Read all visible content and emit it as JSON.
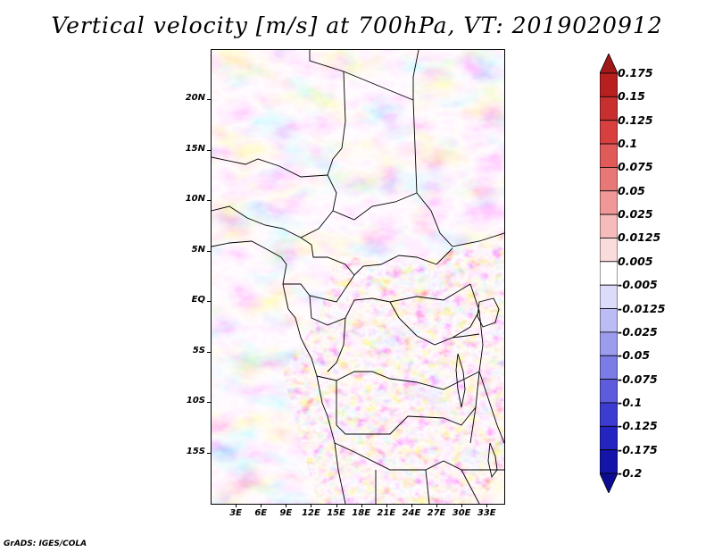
{
  "title": "Vertical velocity [m/s] at 700hPa, VT: 2019020912",
  "footer": "GrADS: IGES/COLA",
  "map": {
    "region": "Central Africa",
    "lon_range": [
      0,
      35
    ],
    "lat_range": [
      -20,
      25
    ],
    "lat_ticks": [
      "20N",
      "15N",
      "10N",
      "5N",
      "EQ",
      "5S",
      "10S",
      "15S"
    ],
    "lat_values": [
      20,
      15,
      10,
      5,
      0,
      -5,
      -10,
      -15
    ],
    "lon_ticks": [
      "3E",
      "6E",
      "9E",
      "12E",
      "15E",
      "18E",
      "21E",
      "24E",
      "27E",
      "30E",
      "33E"
    ],
    "lon_values": [
      3,
      6,
      9,
      12,
      15,
      18,
      21,
      24,
      27,
      30,
      33
    ]
  },
  "colorbar": {
    "labels": [
      "0.175",
      "0.15",
      "0.125",
      "0.1",
      "0.075",
      "0.05",
      "0.025",
      "0.0125",
      "0.005",
      "-0.005",
      "-0.0125",
      "-0.025",
      "-0.05",
      "-0.075",
      "-0.1",
      "-0.125",
      "-0.175",
      "-0.2"
    ],
    "colors": [
      "#a01818",
      "#b82020",
      "#c83030",
      "#d84040",
      "#e05a5a",
      "#e87878",
      "#f09898",
      "#f6bcbc",
      "#fbdcdc",
      "#ffffff",
      "#dcdcfa",
      "#bcbcf4",
      "#9c9cee",
      "#7c7ce6",
      "#5c5cdc",
      "#3c3cd0",
      "#2424c0",
      "#1414a8",
      "#0c0c90"
    ]
  }
}
